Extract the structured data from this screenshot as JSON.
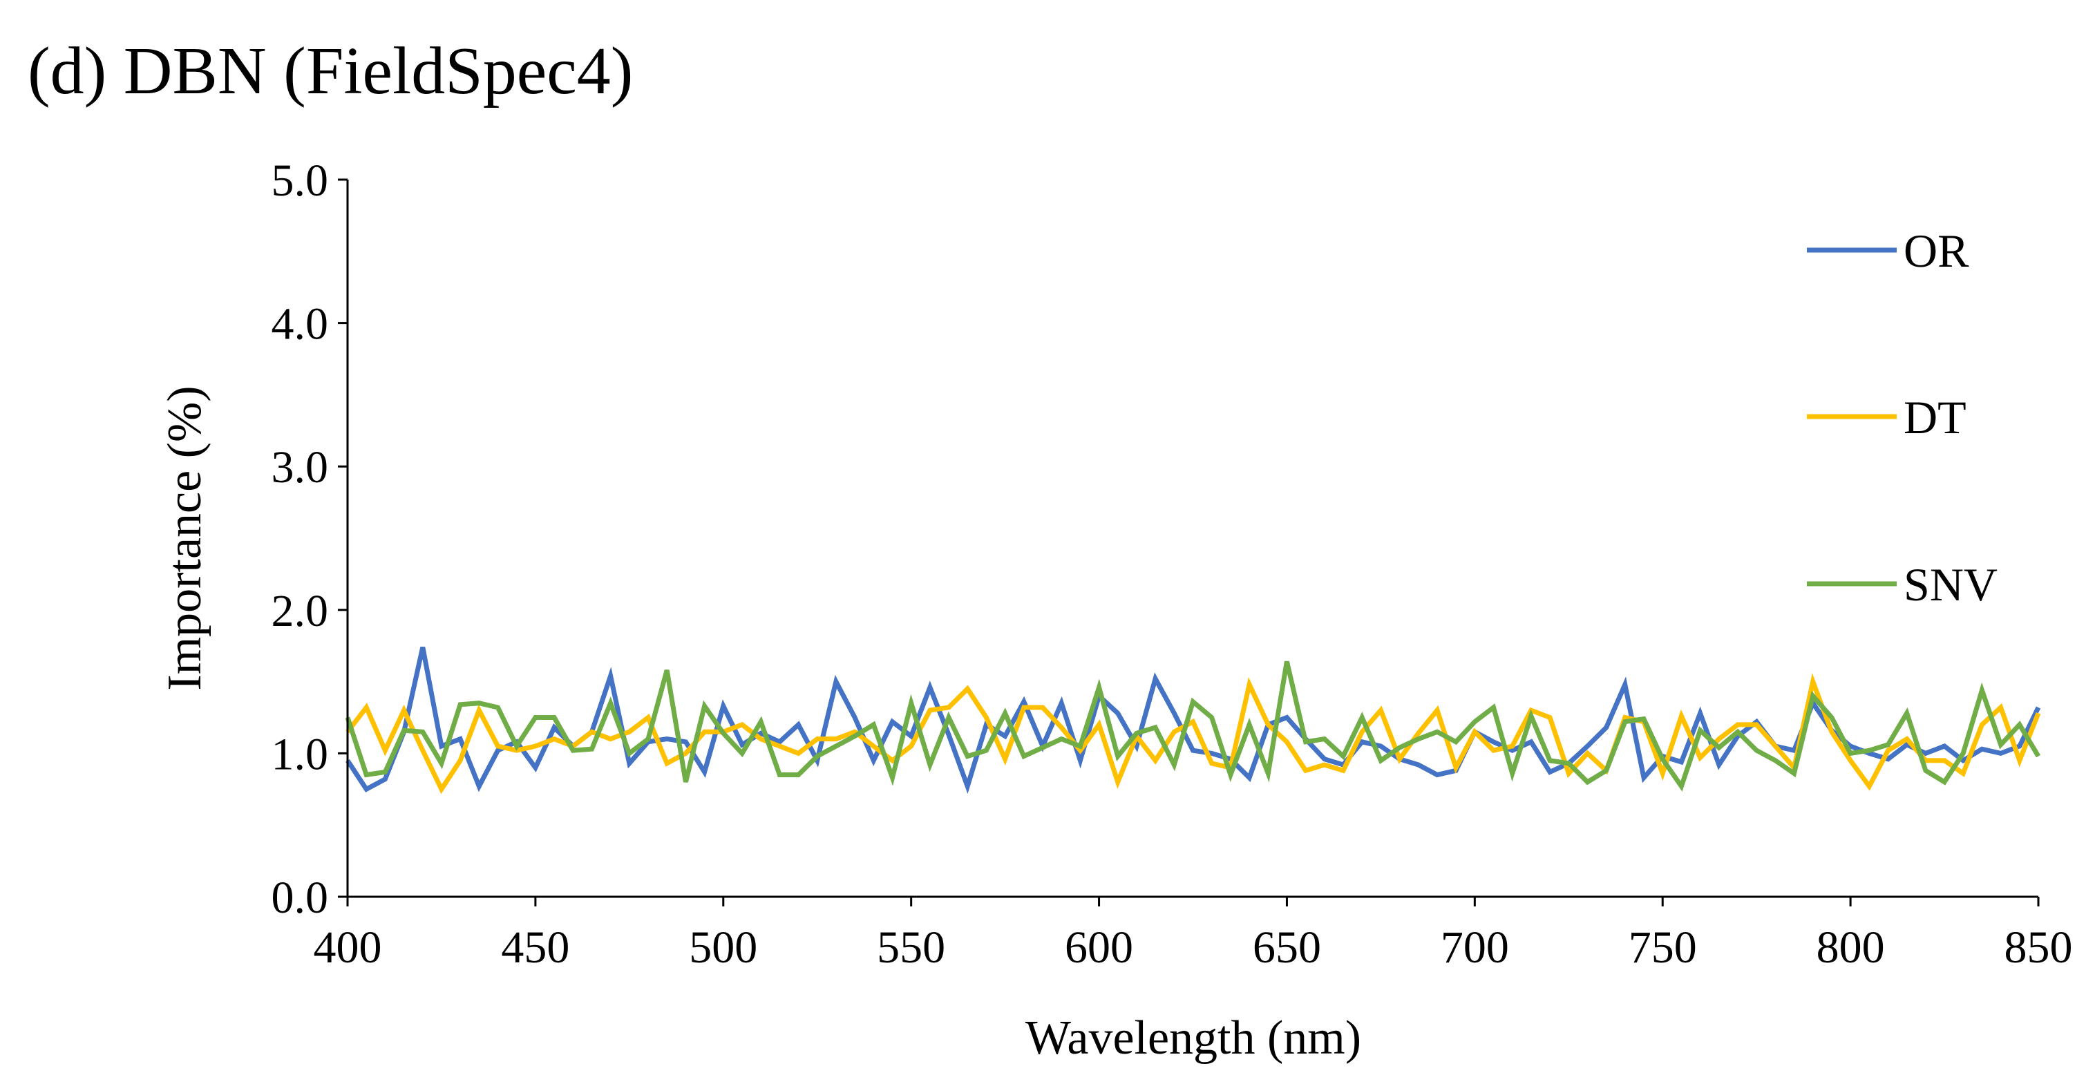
{
  "chart_data": {
    "type": "line",
    "title": "(d) DBN (FieldSpec4)",
    "xlabel": "Wavelength (nm)",
    "ylabel": "Importance (%)",
    "xlim": [
      400,
      850
    ],
    "ylim": [
      0,
      5
    ],
    "x_ticks": [
      400,
      450,
      500,
      550,
      600,
      650,
      700,
      750,
      800,
      850
    ],
    "x_tick_labels": [
      "400",
      "450",
      "500",
      "550",
      "600",
      "650",
      "700",
      "750",
      "800",
      "850"
    ],
    "y_ticks": [
      0,
      1,
      2,
      3,
      4,
      5
    ],
    "y_tick_labels": [
      "0.0",
      "1.0",
      "2.0",
      "3.0",
      "4.0",
      "5.0"
    ],
    "grid": false,
    "legend_position": "right",
    "x": [
      400,
      405,
      410,
      415,
      420,
      425,
      430,
      435,
      440,
      445,
      450,
      455,
      460,
      465,
      470,
      475,
      480,
      485,
      490,
      495,
      500,
      505,
      510,
      515,
      520,
      525,
      530,
      535,
      540,
      545,
      550,
      555,
      560,
      565,
      570,
      575,
      580,
      585,
      590,
      595,
      600,
      605,
      610,
      615,
      620,
      625,
      630,
      635,
      640,
      645,
      650,
      655,
      660,
      665,
      670,
      675,
      680,
      685,
      690,
      695,
      700,
      705,
      710,
      715,
      720,
      725,
      730,
      735,
      740,
      745,
      750,
      755,
      760,
      765,
      770,
      775,
      780,
      785,
      790,
      795,
      800,
      805,
      810,
      815,
      820,
      825,
      830,
      835,
      840,
      845,
      850
    ],
    "series": [
      {
        "name": "OR",
        "color": "#4472C4",
        "values": [
          0.95,
          0.75,
          0.82,
          1.15,
          1.74,
          1.05,
          1.1,
          0.77,
          1.02,
          1.08,
          0.9,
          1.18,
          1.05,
          1.15,
          1.54,
          0.93,
          1.08,
          1.1,
          1.08,
          0.87,
          1.33,
          1.06,
          1.14,
          1.08,
          1.2,
          0.95,
          1.5,
          1.25,
          0.95,
          1.22,
          1.12,
          1.46,
          1.13,
          0.77,
          1.2,
          1.12,
          1.36,
          1.05,
          1.35,
          0.95,
          1.4,
          1.28,
          1.05,
          1.52,
          1.28,
          1.02,
          1.0,
          0.96,
          0.83,
          1.2,
          1.25,
          1.1,
          0.96,
          0.92,
          1.08,
          1.05,
          0.96,
          0.92,
          0.85,
          0.88,
          1.15,
          1.08,
          1.02,
          1.08,
          0.87,
          0.93,
          1.05,
          1.18,
          1.48,
          0.83,
          0.98,
          0.94,
          1.28,
          0.92,
          1.12,
          1.22,
          1.05,
          1.02,
          1.35,
          1.16,
          1.05,
          1.0,
          0.96,
          1.06,
          1.0,
          1.05,
          0.95,
          1.03,
          1.0,
          1.05,
          1.32
        ]
      },
      {
        "name": "DT",
        "color": "#FFC000",
        "values": [
          1.15,
          1.32,
          1.02,
          1.3,
          1.02,
          0.75,
          0.95,
          1.3,
          1.05,
          1.02,
          1.05,
          1.1,
          1.05,
          1.15,
          1.1,
          1.15,
          1.25,
          0.93,
          1.0,
          1.15,
          1.15,
          1.2,
          1.1,
          1.05,
          1.0,
          1.1,
          1.1,
          1.15,
          1.05,
          0.95,
          1.05,
          1.3,
          1.32,
          1.45,
          1.25,
          0.96,
          1.32,
          1.32,
          1.18,
          1.02,
          1.2,
          0.8,
          1.12,
          0.95,
          1.15,
          1.22,
          0.93,
          0.9,
          1.48,
          1.2,
          1.08,
          0.88,
          0.92,
          0.88,
          1.15,
          1.3,
          0.96,
          1.14,
          1.3,
          0.9,
          1.15,
          1.02,
          1.05,
          1.3,
          1.25,
          0.86,
          1.0,
          0.88,
          1.25,
          1.22,
          0.86,
          1.26,
          0.97,
          1.1,
          1.2,
          1.2,
          1.05,
          0.9,
          1.5,
          1.15,
          0.95,
          0.77,
          1.02,
          1.1,
          0.95,
          0.95,
          0.86,
          1.2,
          1.32,
          0.95,
          1.28
        ]
      },
      {
        "name": "SNV",
        "color": "#70AD47",
        "values": [
          1.25,
          0.85,
          0.87,
          1.16,
          1.15,
          0.93,
          1.34,
          1.35,
          1.32,
          1.05,
          1.25,
          1.25,
          1.02,
          1.03,
          1.35,
          1.0,
          1.1,
          1.58,
          0.8,
          1.33,
          1.14,
          1.0,
          1.22,
          0.85,
          0.85,
          0.98,
          1.05,
          1.12,
          1.2,
          0.83,
          1.35,
          0.92,
          1.25,
          0.98,
          1.02,
          1.28,
          0.98,
          1.04,
          1.1,
          1.05,
          1.46,
          0.98,
          1.14,
          1.18,
          0.92,
          1.36,
          1.25,
          0.85,
          1.2,
          0.86,
          1.64,
          1.08,
          1.1,
          0.98,
          1.25,
          0.95,
          1.04,
          1.1,
          1.15,
          1.08,
          1.22,
          1.32,
          0.86,
          1.26,
          0.95,
          0.93,
          0.8,
          0.88,
          1.22,
          1.24,
          0.96,
          0.77,
          1.16,
          1.04,
          1.15,
          1.02,
          0.95,
          0.86,
          1.4,
          1.25,
          1.0,
          1.02,
          1.06,
          1.28,
          0.88,
          0.8,
          1.0,
          1.44,
          1.06,
          1.2,
          0.98
        ]
      }
    ]
  }
}
